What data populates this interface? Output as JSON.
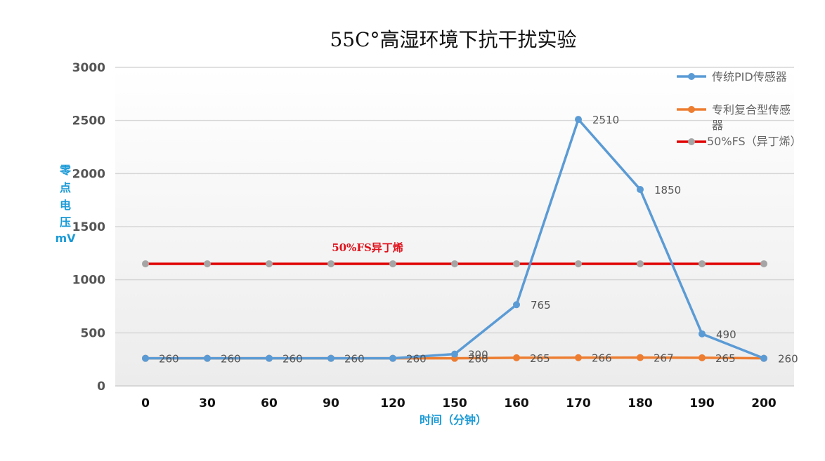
{
  "chart_data": {
    "type": "line",
    "title": "55C°高湿环境下抗干扰实验",
    "xlabel": "时间（分钟）",
    "ylabel_chars": [
      "零",
      "点",
      "电",
      "压",
      "mV"
    ],
    "categories": [
      "0",
      "30",
      "60",
      "90",
      "120",
      "150",
      "160",
      "170",
      "180",
      "190",
      "200"
    ],
    "ylim": [
      0,
      3000
    ],
    "yticks": [
      0,
      500,
      1000,
      1500,
      2000,
      2500,
      3000
    ],
    "grid": true,
    "legend_position": "top-right",
    "series": [
      {
        "name": "传统PID传感器",
        "color": "#5b9bd5",
        "marker_color": "#5b9bd5",
        "values": [
          260,
          260,
          260,
          260,
          260,
          300,
          765,
          2510,
          1850,
          490,
          260
        ],
        "labels": [
          "260",
          "260",
          "260",
          "260",
          "260",
          "300",
          "765",
          "2510",
          "1850",
          "490",
          "260"
        ]
      },
      {
        "name": "专利复合型传感器",
        "color": "#ed7d31",
        "marker_color": "#ed7d31",
        "values": [
          260,
          260,
          260,
          260,
          260,
          260,
          265,
          266,
          267,
          265,
          260
        ],
        "labels": [
          "",
          "",
          "",
          "",
          "",
          "260",
          "265",
          "266",
          "267",
          "265",
          ""
        ]
      },
      {
        "name": "50%FS（异丁烯）",
        "color": "#e00000",
        "marker_color": "#a5a5a5",
        "values": [
          1150,
          1150,
          1150,
          1150,
          1150,
          1150,
          1150,
          1150,
          1150,
          1150,
          1150
        ],
        "labels": [
          "",
          "",
          "",
          "",
          "",
          "",
          "",
          "",
          "",
          "",
          ""
        ]
      }
    ],
    "annotation": "50%FS异丁烯"
  }
}
